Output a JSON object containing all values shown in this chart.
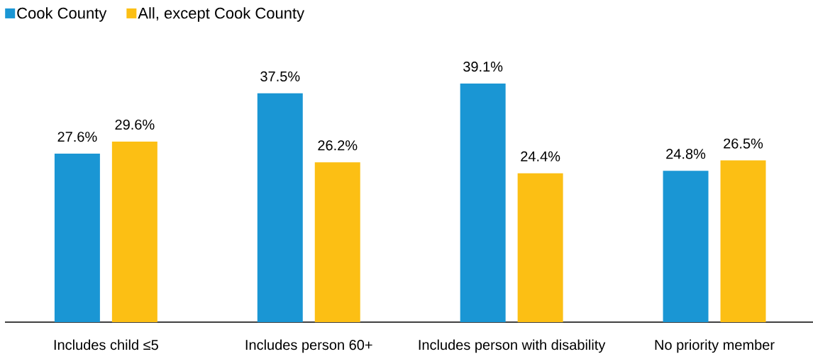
{
  "chart_data": {
    "type": "bar",
    "categories": [
      "Includes child ≤5",
      "Includes person 60+",
      "Includes person with disability",
      "No priority member"
    ],
    "series": [
      {
        "name": "Cook County",
        "color": "#1a96d4",
        "values": [
          27.6,
          37.5,
          39.1,
          24.8
        ],
        "value_labels": [
          "27.6%",
          "37.5%",
          "39.1%",
          "24.8%"
        ]
      },
      {
        "name": "All, except Cook County",
        "color": "#fcbf14",
        "values": [
          29.6,
          26.2,
          24.4,
          26.5
        ],
        "value_labels": [
          "29.6%",
          "26.2%",
          "24.4%",
          "26.5%"
        ]
      }
    ],
    "legend": "top left",
    "tick_labels": "x"
  }
}
